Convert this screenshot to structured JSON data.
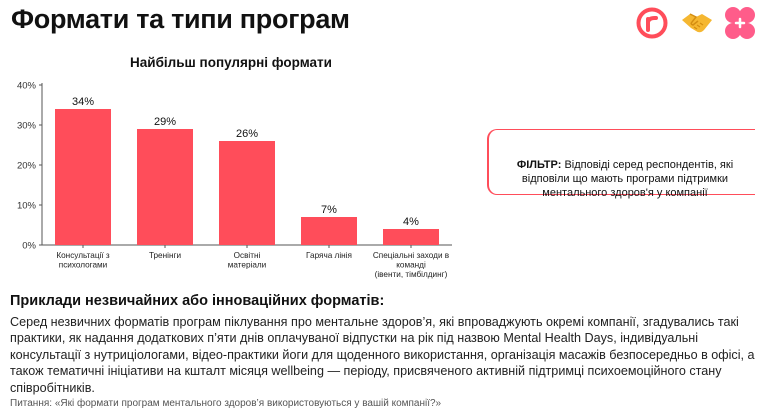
{
  "page": {
    "title": "Формати та типи програм",
    "examples_heading": "Приклади незвичайних або інноваційних форматів:",
    "examples_text": "Серед незвичних форматів програм піклування про ментальне здоров’я, які впроваджують окремі компанії, згадувались такі практики, як надання додаткових п’яти днів оплачуваної відпустки на рік під назвою Mental Health Days, індивідуальні консультації з нутриціологами, відео-практики йоги для щоденного використання, організація масажів безпосередньо в офісі, а також тематичні ініціативи на кшталт місяця wellbeing — періоду, присвяченого активній підтримці психоемоційного стану співробітників.",
    "source_note": "Питання: «Які формати програм ментального здоров’я використовуються у вашій компанії?»"
  },
  "filter": {
    "label": "ФІЛЬТР:",
    "text": "Відповіді серед респондентів, які відповіли що мають програми підтримки ментального здоров'я у компанії"
  },
  "logos": [
    {
      "icon": "r-circle-logo-icon",
      "color": "#ff4d5a"
    },
    {
      "icon": "handshake-icon",
      "color": "#f5b731"
    },
    {
      "icon": "pink-flower-logo-icon",
      "color": "#ff5c8a"
    }
  ],
  "chart_data": {
    "type": "bar",
    "title": "Найбільш популярні формати",
    "categories": [
      [
        "Консультації з",
        "психологами"
      ],
      [
        "Тренінги"
      ],
      [
        "Освітні",
        "матеріали"
      ],
      [
        "Гаряча лінія"
      ],
      [
        "Спеціальні заходи в",
        "команді",
        "(івенти, тімбілдинг)"
      ]
    ],
    "values": [
      34,
      29,
      26,
      7,
      4
    ],
    "value_labels": [
      "34%",
      "29%",
      "26%",
      "7%",
      "4%"
    ],
    "yticks": [
      0,
      10,
      20,
      30,
      40
    ],
    "ytick_labels": [
      "0%",
      "10%",
      "20%",
      "30%",
      "40%"
    ],
    "ylim": [
      0,
      40
    ],
    "xlabel": "",
    "ylabel": "",
    "grid": false,
    "bar_color": "#ff4d5a"
  }
}
